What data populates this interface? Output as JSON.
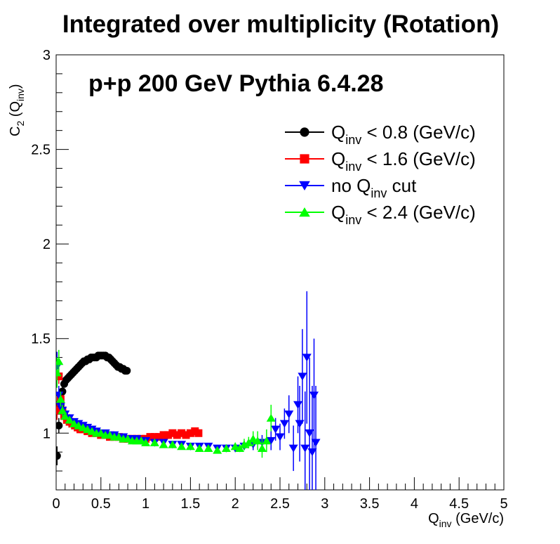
{
  "chart_data": {
    "type": "scatter",
    "title": "Integrated over multiplicity (Rotation)",
    "annotation": "p+p 200 GeV Pythia 6.4.28",
    "xlabel": {
      "main": "Q",
      "sub": "inv",
      "rest": " (GeV/c)"
    },
    "ylabel": {
      "main": "C",
      "sub": "2",
      "rest1": " (Q",
      "sub2": "inv",
      "rest2": ")"
    },
    "xlim": [
      0,
      5
    ],
    "ylim": [
      0.7,
      3
    ],
    "xticks": [
      0,
      0.5,
      1,
      1.5,
      2,
      2.5,
      3,
      3.5,
      4,
      4.5,
      5
    ],
    "xtick_labels": [
      "0",
      "0.5",
      "1",
      "1.5",
      "2",
      "2.5",
      "3",
      "3.5",
      "4",
      "4.5",
      "5"
    ],
    "yticks": [
      1,
      1.5,
      2,
      2.5,
      3
    ],
    "ytick_labels": [
      "1",
      "1.5",
      "2",
      "2.5",
      "3"
    ],
    "grid": false,
    "legend_position": "top-right",
    "series": [
      {
        "name": {
          "main": "Q",
          "sub": "inv",
          "rest": " < 0.8 (GeV/c)"
        },
        "color": "#000000",
        "marker": "circle",
        "points": [
          [
            0.01,
            0.88,
            0.05
          ],
          [
            0.03,
            1.04,
            0.04
          ],
          [
            0.05,
            1.15,
            0.03
          ],
          [
            0.07,
            1.22,
            0.03
          ],
          [
            0.09,
            1.26,
            0.02
          ],
          [
            0.11,
            1.28,
            0.02
          ],
          [
            0.13,
            1.29,
            0.02
          ],
          [
            0.15,
            1.3,
            0.01
          ],
          [
            0.17,
            1.31,
            0.01
          ],
          [
            0.19,
            1.32,
            0.01
          ],
          [
            0.21,
            1.33,
            0.01
          ],
          [
            0.23,
            1.34,
            0.01
          ],
          [
            0.25,
            1.35,
            0.01
          ],
          [
            0.27,
            1.36,
            0.01
          ],
          [
            0.29,
            1.37,
            0.01
          ],
          [
            0.31,
            1.38,
            0.01
          ],
          [
            0.33,
            1.38,
            0.01
          ],
          [
            0.35,
            1.39,
            0.01
          ],
          [
            0.37,
            1.39,
            0.01
          ],
          [
            0.39,
            1.4,
            0.01
          ],
          [
            0.41,
            1.4,
            0.01
          ],
          [
            0.43,
            1.4,
            0.01
          ],
          [
            0.45,
            1.4,
            0.01
          ],
          [
            0.47,
            1.41,
            0.01
          ],
          [
            0.49,
            1.41,
            0.01
          ],
          [
            0.51,
            1.41,
            0.01
          ],
          [
            0.53,
            1.41,
            0.01
          ],
          [
            0.55,
            1.41,
            0.01
          ],
          [
            0.57,
            1.4,
            0.01
          ],
          [
            0.59,
            1.4,
            0.01
          ],
          [
            0.61,
            1.39,
            0.01
          ],
          [
            0.63,
            1.38,
            0.01
          ],
          [
            0.65,
            1.37,
            0.01
          ],
          [
            0.67,
            1.36,
            0.01
          ],
          [
            0.69,
            1.35,
            0.01
          ],
          [
            0.71,
            1.35,
            0.01
          ],
          [
            0.73,
            1.34,
            0.01
          ],
          [
            0.75,
            1.34,
            0.01
          ],
          [
            0.77,
            1.33,
            0.01
          ],
          [
            0.79,
            1.33,
            0.01
          ]
        ]
      },
      {
        "name": {
          "main": "Q",
          "sub": "inv",
          "rest": " < 1.6 (GeV/c)"
        },
        "color": "#ff0000",
        "marker": "square",
        "points": [
          [
            0.01,
            1.12,
            0.05
          ],
          [
            0.03,
            1.3,
            0.04
          ],
          [
            0.05,
            1.18,
            0.03
          ],
          [
            0.07,
            1.12,
            0.02
          ],
          [
            0.09,
            1.09,
            0.02
          ],
          [
            0.12,
            1.07,
            0.02
          ],
          [
            0.15,
            1.06,
            0.01
          ],
          [
            0.18,
            1.05,
            0.01
          ],
          [
            0.21,
            1.04,
            0.01
          ],
          [
            0.24,
            1.03,
            0.01
          ],
          [
            0.27,
            1.02,
            0.01
          ],
          [
            0.3,
            1.02,
            0.01
          ],
          [
            0.35,
            1.01,
            0.01
          ],
          [
            0.4,
            1.0,
            0.01
          ],
          [
            0.45,
            1.0,
            0.01
          ],
          [
            0.5,
            0.99,
            0.01
          ],
          [
            0.55,
            0.99,
            0.01
          ],
          [
            0.6,
            0.98,
            0.01
          ],
          [
            0.65,
            0.98,
            0.01
          ],
          [
            0.7,
            0.98,
            0.01
          ],
          [
            0.75,
            0.97,
            0.01
          ],
          [
            0.8,
            0.97,
            0.01
          ],
          [
            0.85,
            0.97,
            0.01
          ],
          [
            0.9,
            0.97,
            0.01
          ],
          [
            0.95,
            0.97,
            0.01
          ],
          [
            1.0,
            0.97,
            0.01
          ],
          [
            1.05,
            0.98,
            0.01
          ],
          [
            1.1,
            0.98,
            0.01
          ],
          [
            1.15,
            0.98,
            0.01
          ],
          [
            1.2,
            0.99,
            0.01
          ],
          [
            1.25,
            0.99,
            0.01
          ],
          [
            1.3,
            1.0,
            0.01
          ],
          [
            1.35,
            0.99,
            0.01
          ],
          [
            1.4,
            1.0,
            0.01
          ],
          [
            1.45,
            0.99,
            0.01
          ],
          [
            1.5,
            1.0,
            0.01
          ],
          [
            1.55,
            1.01,
            0.01
          ],
          [
            1.59,
            1.0,
            0.01
          ]
        ]
      },
      {
        "name": {
          "main": "no Q",
          "sub": "inv",
          "rest": " cut"
        },
        "color": "#0000ff",
        "marker": "triangle-down",
        "points": [
          [
            0.01,
            1.35,
            0.08
          ],
          [
            0.03,
            1.2,
            0.05
          ],
          [
            0.05,
            1.14,
            0.04
          ],
          [
            0.07,
            1.12,
            0.03
          ],
          [
            0.1,
            1.1,
            0.02
          ],
          [
            0.15,
            1.08,
            0.02
          ],
          [
            0.2,
            1.06,
            0.01
          ],
          [
            0.25,
            1.05,
            0.01
          ],
          [
            0.3,
            1.04,
            0.01
          ],
          [
            0.35,
            1.03,
            0.01
          ],
          [
            0.4,
            1.02,
            0.01
          ],
          [
            0.45,
            1.01,
            0.01
          ],
          [
            0.5,
            1.0,
            0.01
          ],
          [
            0.55,
            1.0,
            0.01
          ],
          [
            0.6,
            0.99,
            0.01
          ],
          [
            0.65,
            0.99,
            0.01
          ],
          [
            0.7,
            0.98,
            0.01
          ],
          [
            0.75,
            0.98,
            0.01
          ],
          [
            0.8,
            0.97,
            0.01
          ],
          [
            0.85,
            0.97,
            0.01
          ],
          [
            0.9,
            0.97,
            0.01
          ],
          [
            0.95,
            0.96,
            0.01
          ],
          [
            1.0,
            0.96,
            0.01
          ],
          [
            1.1,
            0.95,
            0.01
          ],
          [
            1.2,
            0.95,
            0.01
          ],
          [
            1.3,
            0.94,
            0.01
          ],
          [
            1.4,
            0.94,
            0.01
          ],
          [
            1.5,
            0.93,
            0.01
          ],
          [
            1.6,
            0.93,
            0.01
          ],
          [
            1.7,
            0.93,
            0.01
          ],
          [
            1.8,
            0.92,
            0.01
          ],
          [
            1.9,
            0.92,
            0.02
          ],
          [
            2.0,
            0.92,
            0.02
          ],
          [
            2.1,
            0.93,
            0.02
          ],
          [
            2.2,
            0.94,
            0.03
          ],
          [
            2.3,
            0.95,
            0.04
          ],
          [
            2.4,
            0.96,
            0.05
          ],
          [
            2.45,
            1.02,
            0.06
          ],
          [
            2.5,
            0.98,
            0.07
          ],
          [
            2.55,
            1.05,
            0.08
          ],
          [
            2.6,
            1.1,
            0.1
          ],
          [
            2.65,
            0.92,
            0.12
          ],
          [
            2.7,
            1.15,
            0.15
          ],
          [
            2.72,
            1.05,
            0.2
          ],
          [
            2.75,
            1.3,
            0.25
          ],
          [
            2.78,
            0.92,
            0.3
          ],
          [
            2.8,
            1.4,
            0.35
          ],
          [
            2.83,
            1.0,
            0.4
          ],
          [
            2.86,
            0.9,
            0.35
          ],
          [
            2.88,
            1.2,
            0.3
          ],
          [
            2.9,
            0.95,
            0.3
          ]
        ]
      },
      {
        "name": {
          "main": "Q",
          "sub": "inv",
          "rest": " < 2.4 (GeV/c)"
        },
        "color": "#00ff00",
        "marker": "triangle-up",
        "points": [
          [
            0.01,
            1.32,
            0.08
          ],
          [
            0.03,
            1.38,
            0.06
          ],
          [
            0.05,
            1.18,
            0.04
          ],
          [
            0.07,
            1.12,
            0.03
          ],
          [
            0.1,
            1.09,
            0.02
          ],
          [
            0.15,
            1.07,
            0.02
          ],
          [
            0.2,
            1.05,
            0.01
          ],
          [
            0.25,
            1.04,
            0.01
          ],
          [
            0.3,
            1.03,
            0.01
          ],
          [
            0.35,
            1.02,
            0.01
          ],
          [
            0.4,
            1.01,
            0.01
          ],
          [
            0.45,
            1.0,
            0.01
          ],
          [
            0.5,
            1.0,
            0.01
          ],
          [
            0.55,
            0.99,
            0.01
          ],
          [
            0.6,
            0.99,
            0.01
          ],
          [
            0.65,
            0.98,
            0.01
          ],
          [
            0.7,
            0.98,
            0.01
          ],
          [
            0.75,
            0.97,
            0.01
          ],
          [
            0.8,
            0.97,
            0.01
          ],
          [
            0.85,
            0.96,
            0.01
          ],
          [
            0.9,
            0.96,
            0.01
          ],
          [
            0.95,
            0.96,
            0.01
          ],
          [
            1.0,
            0.95,
            0.01
          ],
          [
            1.1,
            0.95,
            0.01
          ],
          [
            1.2,
            0.94,
            0.01
          ],
          [
            1.3,
            0.94,
            0.01
          ],
          [
            1.4,
            0.93,
            0.01
          ],
          [
            1.5,
            0.93,
            0.01
          ],
          [
            1.6,
            0.92,
            0.01
          ],
          [
            1.7,
            0.92,
            0.01
          ],
          [
            1.8,
            0.91,
            0.01
          ],
          [
            1.9,
            0.92,
            0.02
          ],
          [
            2.0,
            0.93,
            0.02
          ],
          [
            2.05,
            0.92,
            0.02
          ],
          [
            2.1,
            0.94,
            0.03
          ],
          [
            2.15,
            0.95,
            0.03
          ],
          [
            2.2,
            0.97,
            0.04
          ],
          [
            2.25,
            0.96,
            0.05
          ],
          [
            2.3,
            0.92,
            0.05
          ],
          [
            2.35,
            0.96,
            0.06
          ],
          [
            2.4,
            1.08,
            0.07
          ]
        ]
      }
    ]
  }
}
